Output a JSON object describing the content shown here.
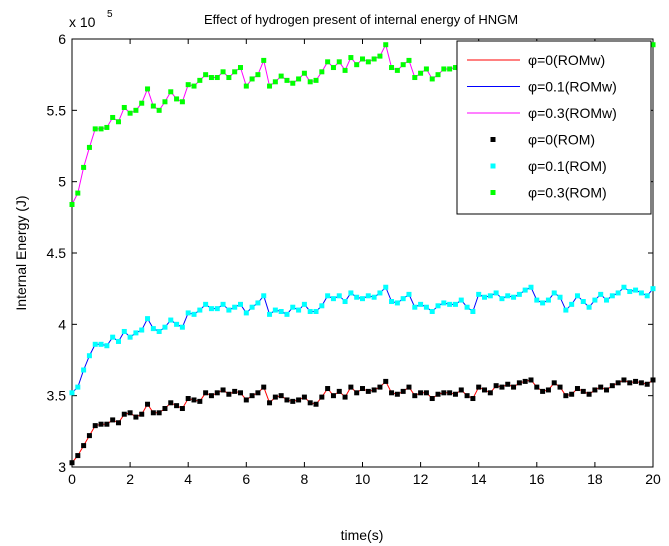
{
  "chart_data": {
    "type": "line",
    "title": "Effect of hydrogen present of internal energy of HNGM",
    "xlabel": "time(s)",
    "ylabel": "Internal Energy (J)",
    "y_multiplier_label": "x 10",
    "y_multiplier_exponent": "5",
    "xlim": [
      0,
      20
    ],
    "ylim": [
      3,
      6
    ],
    "xticks": [
      0,
      2,
      4,
      6,
      8,
      10,
      12,
      14,
      16,
      18,
      20
    ],
    "xtick_labels": [
      "0",
      "2",
      "4",
      "6",
      "8",
      "10",
      "12",
      "14",
      "16",
      "18",
      "20"
    ],
    "yticks": [
      3,
      3.5,
      4,
      4.5,
      5,
      5.5,
      6
    ],
    "ytick_labels": [
      "3",
      "3.5",
      "4",
      "4.5",
      "5",
      "5.5",
      "6"
    ],
    "grid": false,
    "legend_position": "top-right",
    "legend": [
      {
        "label": "φ=0(ROMw)",
        "style": "line",
        "color": "#ff0000"
      },
      {
        "label": "φ=0.1(ROMw)",
        "style": "line",
        "color": "#0000ff"
      },
      {
        "label": "φ=0.3(ROMw)",
        "style": "line",
        "color": "#ff00ff"
      },
      {
        "label": "φ=0(ROM)",
        "style": "marker",
        "color": "#000000"
      },
      {
        "label": "φ=0.1(ROM)",
        "style": "marker",
        "color": "#00ffff"
      },
      {
        "label": "φ=0.3(ROM)",
        "style": "marker",
        "color": "#00ff00"
      }
    ],
    "sample_step": 0.2,
    "series": [
      {
        "name": "φ=0(ROMw) / φ=0(ROM)",
        "line_color": "#ff0000",
        "marker_color": "#000000",
        "x_start": 0,
        "x_end": 20,
        "values_x1e5": [
          3.03,
          3.08,
          3.15,
          3.22,
          3.29,
          3.3,
          3.3,
          3.33,
          3.31,
          3.37,
          3.38,
          3.35,
          3.37,
          3.44,
          3.38,
          3.38,
          3.41,
          3.45,
          3.43,
          3.41,
          3.48,
          3.47,
          3.46,
          3.52,
          3.5,
          3.52,
          3.54,
          3.51,
          3.53,
          3.52,
          3.47,
          3.5,
          3.52,
          3.56,
          3.45,
          3.49,
          3.5,
          3.47,
          3.46,
          3.47,
          3.49,
          3.45,
          3.44,
          3.49,
          3.55,
          3.5,
          3.53,
          3.49,
          3.56,
          3.52,
          3.55,
          3.53,
          3.54,
          3.56,
          3.6,
          3.52,
          3.51,
          3.53,
          3.56,
          3.5,
          3.52,
          3.52,
          3.48,
          3.51,
          3.52,
          3.52,
          3.51,
          3.54,
          3.5,
          3.48,
          3.56,
          3.54,
          3.52,
          3.57,
          3.56,
          3.58,
          3.56,
          3.59,
          3.6,
          3.61,
          3.56,
          3.53,
          3.54,
          3.59,
          3.56,
          3.5,
          3.51,
          3.55,
          3.53,
          3.51,
          3.54,
          3.56,
          3.54,
          3.57,
          3.59,
          3.61,
          3.59,
          3.6,
          3.59,
          3.58,
          3.61
        ]
      },
      {
        "name": "φ=0.1(ROMw) / φ=0.1(ROM)",
        "line_color": "#0000ff",
        "marker_color": "#00ffff",
        "x_start": 0,
        "x_end": 20,
        "values_x1e5": [
          3.52,
          3.56,
          3.68,
          3.78,
          3.86,
          3.86,
          3.85,
          3.91,
          3.88,
          3.95,
          3.91,
          3.94,
          3.96,
          4.04,
          3.97,
          3.95,
          3.98,
          4.03,
          4.0,
          3.98,
          4.08,
          4.07,
          4.1,
          4.14,
          4.11,
          4.11,
          4.14,
          4.1,
          4.12,
          4.14,
          4.08,
          4.12,
          4.15,
          4.2,
          4.07,
          4.1,
          4.09,
          4.07,
          4.12,
          4.1,
          4.14,
          4.09,
          4.09,
          4.13,
          4.2,
          4.18,
          4.2,
          4.16,
          4.22,
          4.19,
          4.18,
          4.2,
          4.19,
          4.22,
          4.26,
          4.16,
          4.15,
          4.18,
          4.21,
          4.12,
          4.14,
          4.12,
          4.09,
          4.13,
          4.15,
          4.14,
          4.14,
          4.17,
          4.12,
          4.09,
          4.21,
          4.19,
          4.2,
          4.22,
          4.18,
          4.2,
          4.19,
          4.21,
          4.24,
          4.26,
          4.17,
          4.15,
          4.17,
          4.22,
          4.19,
          4.1,
          4.14,
          4.2,
          4.16,
          4.12,
          4.17,
          4.21,
          4.17,
          4.2,
          4.22,
          4.26,
          4.23,
          4.24,
          4.22,
          4.2,
          4.25
        ]
      },
      {
        "name": "φ=0.3(ROMw) / φ=0.3(ROM)",
        "line_color": "#ff00ff",
        "marker_color": "#00ff00",
        "x_start": 0,
        "x_end": 20,
        "values_x1e5": [
          4.84,
          4.92,
          5.1,
          5.24,
          5.37,
          5.37,
          5.38,
          5.45,
          5.42,
          5.52,
          5.48,
          5.5,
          5.55,
          5.65,
          5.53,
          5.5,
          5.56,
          5.63,
          5.58,
          5.56,
          5.68,
          5.67,
          5.71,
          5.75,
          5.73,
          5.73,
          5.77,
          5.73,
          5.77,
          5.8,
          5.67,
          5.72,
          5.75,
          5.85,
          5.67,
          5.7,
          5.74,
          5.71,
          5.69,
          5.72,
          5.76,
          5.7,
          5.71,
          5.77,
          5.84,
          5.8,
          5.84,
          5.78,
          5.87,
          5.82,
          5.86,
          5.84,
          5.86,
          5.88,
          5.96,
          5.8,
          5.78,
          5.82,
          5.85,
          5.73,
          5.76,
          5.79,
          5.72,
          5.75,
          5.79,
          5.79,
          5.8,
          5.82,
          5.77,
          5.72,
          5.86,
          5.89,
          5.85,
          5.92,
          5.9,
          5.94,
          5.91,
          5.93,
          5.96,
          5.97,
          5.87,
          5.84,
          5.88,
          5.95,
          5.9,
          5.78,
          5.83,
          5.91,
          5.85,
          5.8,
          5.87,
          5.92,
          5.86,
          5.91,
          5.93,
          5.96,
          5.92,
          5.95,
          5.93,
          5.91,
          5.96
        ]
      }
    ]
  }
}
